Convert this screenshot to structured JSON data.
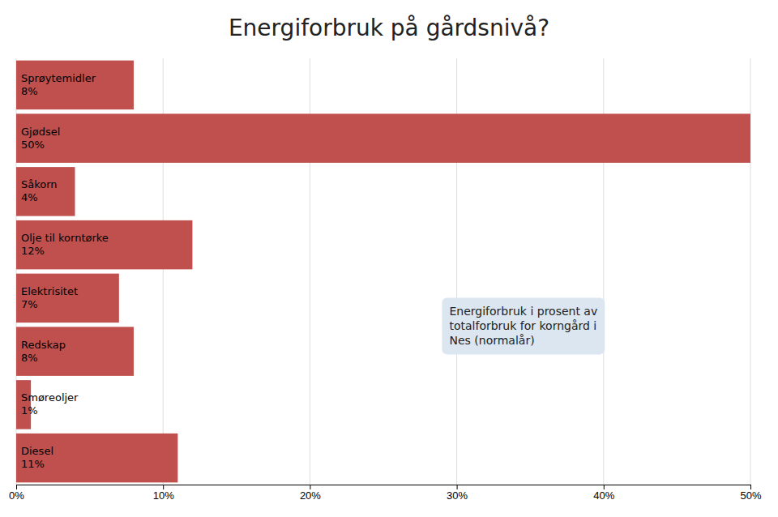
{
  "chart_data": {
    "type": "bar",
    "orientation": "horizontal",
    "title": "Energiforbruk på gårdsnivå?",
    "categories": [
      "Sprøytemidler\n8%",
      "Gjødsel\n50%",
      "Såkorn\n4%",
      "Olje til korntørke\n12%",
      "Elektrisitet\n7%",
      "Redskap\n8%",
      "Smøreoljer\n1%",
      "Diesel\n11%"
    ],
    "values": [
      8,
      50,
      4,
      12,
      7,
      8,
      1,
      11
    ],
    "color": "#c0504d",
    "xlim": [
      0,
      50
    ],
    "xticks": [
      {
        "value": 0,
        "label": "0%"
      },
      {
        "value": 10,
        "label": "10%"
      },
      {
        "value": 20,
        "label": "20%"
      },
      {
        "value": 30,
        "label": "30%"
      },
      {
        "value": 40,
        "label": "40%"
      },
      {
        "value": 50,
        "label": "50%"
      }
    ],
    "grid": true,
    "annotation": "Energiforbruk i prosent av\ntotalforbruk for korngård i\nNes (normalår)"
  }
}
